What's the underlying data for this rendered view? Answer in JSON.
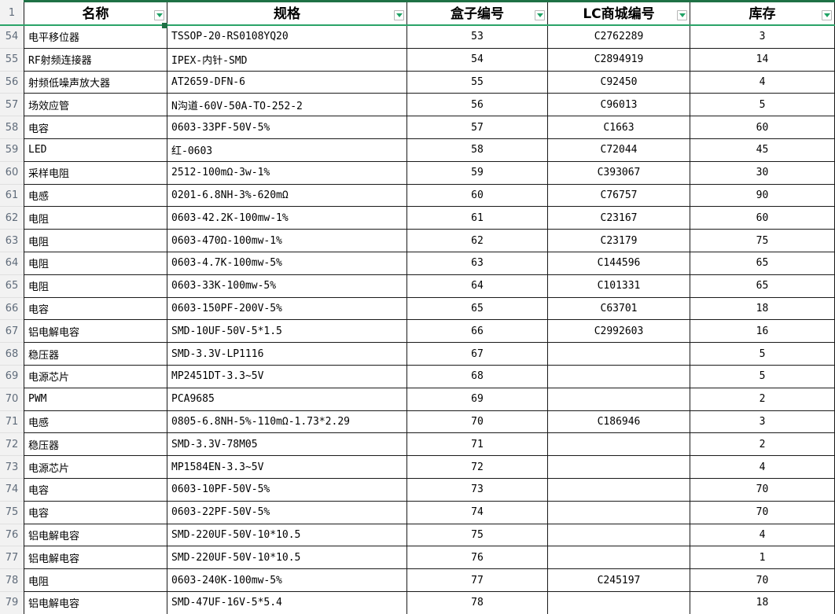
{
  "sheet": {
    "header_row_number": "1",
    "columns": [
      {
        "label": "名称"
      },
      {
        "label": "规格"
      },
      {
        "label": "盒子编号"
      },
      {
        "label": "LC商城编号"
      },
      {
        "label": "库存"
      }
    ],
    "filter_icon": "filter-dropdown-arrow",
    "rows": [
      {
        "row_number": "54",
        "name": "电平移位器",
        "spec": "TSSOP-20-RS0108YQ20",
        "box": "53",
        "lc": "C2762289",
        "stock": "3"
      },
      {
        "row_number": "55",
        "name": "RF射频连接器",
        "spec": "IPEX-内针-SMD",
        "box": "54",
        "lc": "C2894919",
        "stock": "14"
      },
      {
        "row_number": "56",
        "name": "射频低噪声放大器",
        "spec": "AT2659-DFN-6",
        "box": "55",
        "lc": "C92450",
        "stock": "4"
      },
      {
        "row_number": "57",
        "name": "场效应管",
        "spec": "N沟道-60V-50A-TO-252-2",
        "box": "56",
        "lc": "C96013",
        "stock": "5"
      },
      {
        "row_number": "58",
        "name": "电容",
        "spec": "0603-33PF-50V-5%",
        "box": "57",
        "lc": "C1663",
        "stock": "60"
      },
      {
        "row_number": "59",
        "name": "LED",
        "spec": "红-0603",
        "box": "58",
        "lc": "C72044",
        "stock": "45"
      },
      {
        "row_number": "60",
        "name": "采样电阻",
        "spec": "2512-100mΩ-3w-1%",
        "box": "59",
        "lc": "C393067",
        "stock": "30"
      },
      {
        "row_number": "61",
        "name": "电感",
        "spec": "0201-6.8NH-3%-620mΩ",
        "box": "60",
        "lc": "C76757",
        "stock": "90"
      },
      {
        "row_number": "62",
        "name": "电阻",
        "spec": "0603-42.2K-100mw-1%",
        "box": "61",
        "lc": "C23167",
        "stock": "60"
      },
      {
        "row_number": "63",
        "name": "电阻",
        "spec": "0603-470Ω-100mw-1%",
        "box": "62",
        "lc": "C23179",
        "stock": "75"
      },
      {
        "row_number": "64",
        "name": "电阻",
        "spec": "0603-4.7K-100mw-5%",
        "box": "63",
        "lc": "C144596",
        "stock": "65"
      },
      {
        "row_number": "65",
        "name": "电阻",
        "spec": "0603-33K-100mw-5%",
        "box": "64",
        "lc": "C101331",
        "stock": "65"
      },
      {
        "row_number": "66",
        "name": "电容",
        "spec": "0603-150PF-200V-5%",
        "box": "65",
        "lc": "C63701",
        "stock": "18"
      },
      {
        "row_number": "67",
        "name": "铝电解电容",
        "spec": "SMD-10UF-50V-5*1.5",
        "box": "66",
        "lc": "C2992603",
        "stock": "16"
      },
      {
        "row_number": "68",
        "name": "稳压器",
        "spec": "SMD-3.3V-LP1116",
        "box": "67",
        "lc": "",
        "stock": "5"
      },
      {
        "row_number": "69",
        "name": "电源芯片",
        "spec": "MP2451DT-3.3~5V",
        "box": "68",
        "lc": "",
        "stock": "5"
      },
      {
        "row_number": "70",
        "name": "PWM",
        "spec": "PCA9685",
        "box": "69",
        "lc": "",
        "stock": "2"
      },
      {
        "row_number": "71",
        "name": "电感",
        "spec": "0805-6.8NH-5%-110mΩ-1.73*2.29",
        "box": "70",
        "lc": "C186946",
        "stock": "3"
      },
      {
        "row_number": "72",
        "name": "稳压器",
        "spec": "SMD-3.3V-78M05",
        "box": "71",
        "lc": "",
        "stock": "2"
      },
      {
        "row_number": "73",
        "name": "电源芯片",
        "spec": "MP1584EN-3.3~5V",
        "box": "72",
        "lc": "",
        "stock": "4"
      },
      {
        "row_number": "74",
        "name": "电容",
        "spec": "0603-10PF-50V-5%",
        "box": "73",
        "lc": "",
        "stock": "70"
      },
      {
        "row_number": "75",
        "name": "电容",
        "spec": "0603-22PF-50V-5%",
        "box": "74",
        "lc": "",
        "stock": "70"
      },
      {
        "row_number": "76",
        "name": "铝电解电容",
        "spec": "SMD-220UF-50V-10*10.5",
        "box": "75",
        "lc": "",
        "stock": "4"
      },
      {
        "row_number": "77",
        "name": "铝电解电容",
        "spec": "SMD-220UF-50V-10*10.5",
        "box": "76",
        "lc": "",
        "stock": "1"
      },
      {
        "row_number": "78",
        "name": "电阻",
        "spec": "0603-240K-100mw-5%",
        "box": "77",
        "lc": "C245197",
        "stock": "70"
      },
      {
        "row_number": "79",
        "name": "铝电解电容",
        "spec": "SMD-47UF-16V-5*5.4",
        "box": "78",
        "lc": "",
        "stock": "18"
      }
    ]
  },
  "colors": {
    "selection_accent_dark_green": "#1e7145",
    "selection_underline_green": "#2aa368",
    "filter_arrow_green": "#21a366",
    "grid_border": "#1a1a1a",
    "gutter_background": "#f2f2f2",
    "gutter_text": "#5f6b7a"
  }
}
